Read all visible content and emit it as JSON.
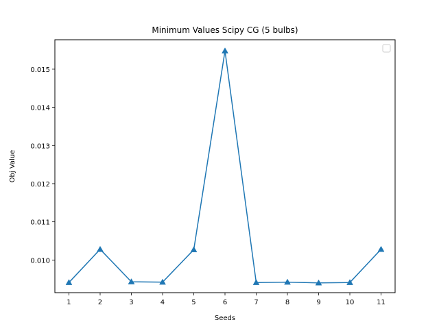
{
  "chart_data": {
    "type": "line",
    "title": "Minimum Values Scipy CG (5 bulbs)",
    "xlabel": "Seeds",
    "ylabel": "Obj Value",
    "x": [
      1,
      2,
      3,
      4,
      5,
      6,
      7,
      8,
      9,
      10,
      11
    ],
    "series": [
      {
        "values": [
          0.00941,
          0.01028,
          0.00943,
          0.00942,
          0.01027,
          0.01548,
          0.00941,
          0.00942,
          0.0094,
          0.00941,
          0.01028
        ],
        "color": "#1f77b4",
        "marker": "triangle-up"
      }
    ],
    "xlim": [
      0.55,
      11.45
    ],
    "ylim": [
      0.009144,
      0.015771
    ],
    "xticks": [
      "1",
      "2",
      "3",
      "4",
      "5",
      "6",
      "7",
      "8",
      "9",
      "10",
      "11"
    ],
    "yticks": [
      0.01,
      0.011,
      0.012,
      0.013,
      0.014,
      0.015
    ],
    "ytick_labels": [
      "0.010",
      "0.011",
      "0.012",
      "0.013",
      "0.014",
      "0.015"
    ],
    "grid": false,
    "legend": {
      "placement": "top-right",
      "entries": []
    }
  }
}
